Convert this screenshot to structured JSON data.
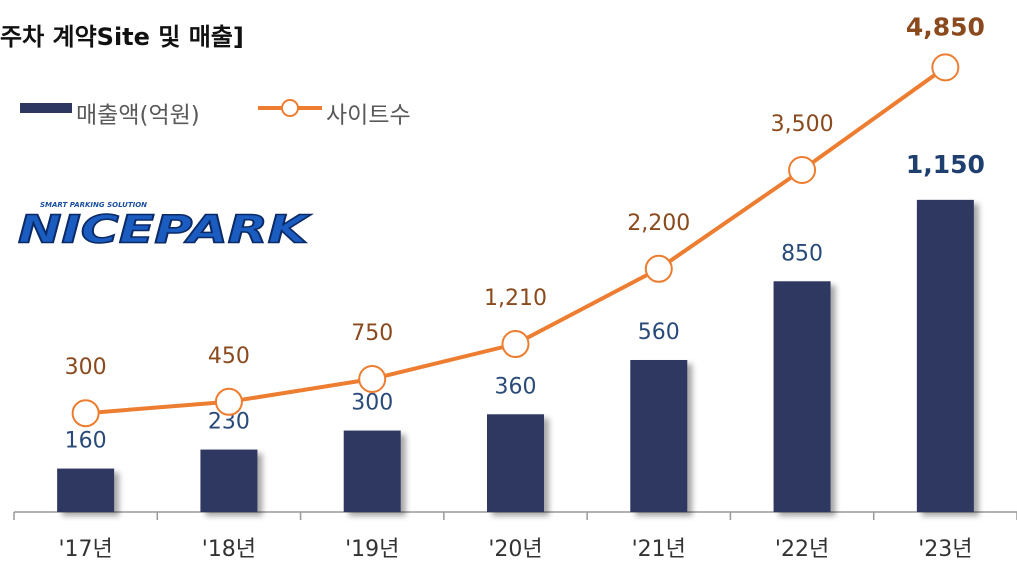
{
  "chart_data": {
    "type": "bar-line",
    "title": "주차 계약Site 및 매출]",
    "logo": {
      "tagline": "SMART PARKING SOLUTION",
      "name": "NICEPARK"
    },
    "categories": [
      "'17년",
      "'18년",
      "'19년",
      "'20년",
      "'21년",
      "'22년",
      "'23년"
    ],
    "series": [
      {
        "name": "매출액(억원)",
        "type": "bar",
        "color": "#2e3760",
        "values": [
          160,
          230,
          300,
          360,
          560,
          850,
          1150
        ],
        "value_labels": [
          "160",
          "230",
          "300",
          "360",
          "560",
          "850",
          "1,150"
        ]
      },
      {
        "name": "사이트수",
        "type": "line",
        "axis": "y2",
        "color": "#ed7d31",
        "values": [
          300,
          450,
          750,
          1210,
          2200,
          3500,
          4850
        ],
        "value_labels": [
          "300",
          "450",
          "750",
          "1,210",
          "2,200",
          "3,500",
          "4,850"
        ]
      }
    ],
    "ylim": [
      0,
      1400
    ],
    "y2lim": [
      -1000,
      4000
    ],
    "legend": "top-left"
  }
}
